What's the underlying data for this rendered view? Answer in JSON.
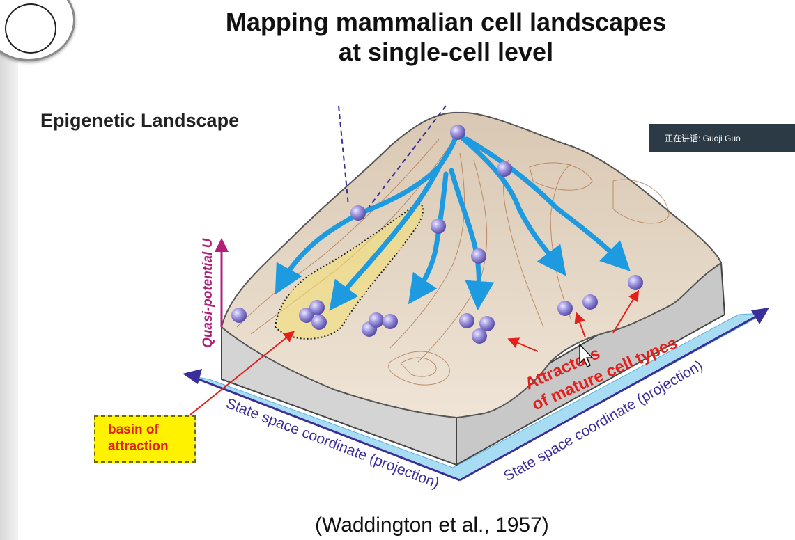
{
  "slide": {
    "title": "Mapping mammalian cell landscapes\nat single-cell level",
    "title_line1": "Mapping mammalian cell landscapes",
    "title_line2": "at single-cell level",
    "subheading": "Epigenetic Landscape",
    "citation": "(Waddington et al., 1957)"
  },
  "diagram": {
    "y_axis_label": "Quasi-potential U",
    "x_axis_label_left": "State space coordinate (projection)",
    "x_axis_label_right": "State space coordinate (projection)",
    "basin_label": "basin of\nattraction",
    "basin_line1": "basin of",
    "basin_line2": "attraction",
    "attractor_line1": "Attractors",
    "attractor_line2": "of mature cell types"
  },
  "overlay": {
    "speaker_text": "正在讲话: Guoji Guo"
  },
  "colors": {
    "arrow_blue": "#1e9be0",
    "axis_purple": "#b0207a",
    "label_red": "#e3201b",
    "ball_purple": "#8f86d6"
  }
}
